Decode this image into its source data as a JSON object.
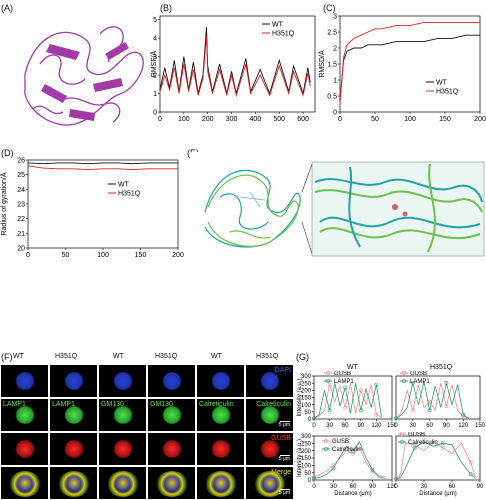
{
  "panel_labels": {
    "A": "(A)",
    "B": "(B)",
    "C": "(C)",
    "D": "(D)",
    "E": "(E)",
    "F": "(F)",
    "G": "(G)"
  },
  "legend": {
    "wt": "WT",
    "mut": "H351Q"
  },
  "colors": {
    "wt": "#111111",
    "mut": "#e32222",
    "gusb": "#f08f8f",
    "green": "#2e9d6a",
    "protein": "#a23aa8"
  },
  "chart_data": [
    {
      "id": "B",
      "type": "line",
      "ylabel": "RMSF/Å",
      "xlabel": "",
      "xlim": [
        0,
        650
      ],
      "ylim": [
        0,
        5.2
      ],
      "xticks": [
        0,
        100,
        200,
        300,
        400,
        500,
        600
      ],
      "yticks": [
        0,
        1,
        2,
        3,
        4,
        5
      ],
      "series": [
        {
          "name": "WT",
          "x": [
            0,
            20,
            40,
            60,
            80,
            100,
            120,
            140,
            160,
            180,
            195,
            200,
            220,
            250,
            280,
            300,
            320,
            360,
            380,
            420,
            460,
            500,
            540,
            560,
            600,
            620,
            630
          ],
          "y": [
            1.2,
            2.4,
            1.3,
            2.8,
            1.1,
            3.0,
            1.2,
            2.7,
            1.0,
            2.0,
            4.6,
            2.5,
            1.1,
            2.6,
            1.0,
            2.2,
            1.0,
            2.9,
            1.1,
            2.3,
            1.0,
            2.8,
            1.1,
            2.5,
            1.0,
            2.4,
            1.6
          ]
        },
        {
          "name": "H351Q",
          "x": [
            0,
            20,
            40,
            60,
            80,
            100,
            120,
            140,
            160,
            180,
            195,
            200,
            220,
            250,
            280,
            300,
            320,
            360,
            380,
            420,
            460,
            500,
            540,
            560,
            600,
            620,
            630
          ],
          "y": [
            1.1,
            2.0,
            1.2,
            2.4,
            1.0,
            2.6,
            1.1,
            2.3,
            0.9,
            1.8,
            4.1,
            2.2,
            1.0,
            2.3,
            0.9,
            2.0,
            0.9,
            2.6,
            1.0,
            2.0,
            0.9,
            2.5,
            1.0,
            2.2,
            0.9,
            2.1,
            1.4
          ]
        }
      ]
    },
    {
      "id": "C",
      "type": "line",
      "ylabel": "RMSD/Å",
      "xlabel": "",
      "xlim": [
        0,
        200
      ],
      "ylim": [
        0,
        3.0
      ],
      "xticks": [
        0,
        50,
        100,
        150,
        200
      ],
      "yticks": [
        0,
        0.5,
        1.0,
        1.5,
        2.0,
        2.5,
        3.0
      ],
      "series": [
        {
          "name": "WT",
          "x": [
            0,
            5,
            10,
            20,
            30,
            40,
            50,
            60,
            80,
            100,
            120,
            140,
            160,
            180,
            200
          ],
          "y": [
            0.3,
            1.6,
            1.9,
            2.0,
            2.0,
            2.1,
            2.1,
            2.1,
            2.2,
            2.2,
            2.2,
            2.3,
            2.3,
            2.4,
            2.4
          ]
        },
        {
          "name": "H351Q",
          "x": [
            0,
            5,
            10,
            20,
            30,
            40,
            50,
            60,
            80,
            100,
            120,
            140,
            160,
            180,
            200
          ],
          "y": [
            0.3,
            1.7,
            2.1,
            2.3,
            2.4,
            2.5,
            2.6,
            2.6,
            2.7,
            2.7,
            2.8,
            2.8,
            2.8,
            2.8,
            2.8
          ]
        }
      ]
    },
    {
      "id": "D",
      "type": "line",
      "ylabel": "Radius of gyration/Å",
      "xlabel": "",
      "xlim": [
        0,
        200
      ],
      "ylim": [
        20,
        26
      ],
      "xticks": [
        0,
        50,
        100,
        150,
        200
      ],
      "yticks": [
        20,
        21,
        22,
        23,
        24,
        25,
        26
      ],
      "series": [
        {
          "name": "WT",
          "x": [
            0,
            20,
            40,
            60,
            80,
            100,
            120,
            140,
            160,
            180,
            200
          ],
          "y": [
            25.8,
            25.75,
            25.8,
            25.8,
            25.75,
            25.8,
            25.8,
            25.75,
            25.8,
            25.8,
            25.8
          ]
        },
        {
          "name": "H351Q",
          "x": [
            0,
            20,
            40,
            60,
            80,
            100,
            120,
            140,
            160,
            180,
            200
          ],
          "y": [
            25.6,
            25.45,
            25.4,
            25.4,
            25.35,
            25.4,
            25.4,
            25.35,
            25.4,
            25.4,
            25.4
          ]
        }
      ]
    },
    {
      "id": "G1",
      "type": "line",
      "ylabel": "Intensity (a.u.)",
      "xlabel": "",
      "xlim": [
        0,
        150
      ],
      "ylim": [
        0,
        300
      ],
      "xticks": [
        0,
        30,
        60,
        90,
        120,
        150
      ],
      "yticks": [
        0,
        50,
        100,
        150,
        200,
        250,
        300
      ],
      "series": [
        {
          "name": "GUSB",
          "x": [
            0,
            10,
            20,
            30,
            40,
            50,
            60,
            70,
            80,
            90,
            100,
            110,
            120,
            130
          ],
          "y": [
            5,
            20,
            60,
            240,
            120,
            230,
            80,
            250,
            40,
            200,
            100,
            240,
            30,
            10
          ]
        },
        {
          "name": "LAMP1",
          "x": [
            0,
            10,
            20,
            30,
            40,
            50,
            60,
            70,
            80,
            90,
            100,
            110,
            120,
            130
          ],
          "y": [
            5,
            30,
            200,
            60,
            250,
            90,
            220,
            40,
            250,
            60,
            210,
            80,
            240,
            10
          ]
        }
      ]
    },
    {
      "id": "G2",
      "type": "line",
      "ylabel": "",
      "xlabel": "",
      "xlim": [
        0,
        150
      ],
      "ylim": [
        0,
        300
      ],
      "xticks": [
        0,
        30,
        60,
        90,
        120,
        150
      ],
      "yticks": [],
      "series": [
        {
          "name": "GUSB",
          "x": [
            0,
            10,
            20,
            30,
            40,
            50,
            60,
            70,
            80,
            90,
            100,
            110,
            120,
            130
          ],
          "y": [
            5,
            50,
            200,
            60,
            240,
            80,
            120,
            60,
            250,
            90,
            240,
            60,
            20,
            5
          ]
        },
        {
          "name": "LAMP1",
          "x": [
            0,
            10,
            20,
            30,
            40,
            50,
            60,
            70,
            80,
            90,
            100,
            110,
            120,
            130
          ],
          "y": [
            5,
            30,
            80,
            250,
            100,
            260,
            60,
            230,
            80,
            250,
            100,
            240,
            30,
            5
          ]
        }
      ]
    },
    {
      "id": "G3",
      "type": "line",
      "ylabel": "Intensity (a.u.)",
      "xlabel": "Distance (μm)",
      "xlim": [
        0,
        120
      ],
      "ylim": [
        0,
        300
      ],
      "xticks": [
        0,
        30,
        60,
        90,
        120
      ],
      "yticks": [
        0,
        50,
        100,
        150,
        200,
        250,
        300
      ],
      "series": [
        {
          "name": "GUSB",
          "x": [
            0,
            10,
            20,
            30,
            40,
            50,
            60,
            70,
            80,
            90,
            100,
            110
          ],
          "y": [
            20,
            40,
            60,
            100,
            150,
            200,
            180,
            220,
            120,
            60,
            30,
            20
          ]
        },
        {
          "name": "Calreticulin",
          "x": [
            0,
            10,
            20,
            30,
            40,
            50,
            60,
            70,
            80,
            90,
            100,
            110
          ],
          "y": [
            10,
            20,
            40,
            80,
            160,
            230,
            200,
            260,
            150,
            70,
            20,
            10
          ]
        }
      ]
    },
    {
      "id": "G4",
      "type": "line",
      "ylabel": "",
      "xlabel": "Distance (μm)",
      "xlim": [
        0,
        90
      ],
      "ylim": [
        0,
        300
      ],
      "xticks": [
        0,
        30,
        60,
        90
      ],
      "yticks": [],
      "series": [
        {
          "name": "GUSB",
          "x": [
            0,
            5,
            10,
            20,
            30,
            40,
            50,
            60,
            70,
            80,
            85
          ],
          "y": [
            10,
            40,
            250,
            240,
            200,
            260,
            220,
            180,
            250,
            120,
            20
          ]
        },
        {
          "name": "Calreticulin",
          "x": [
            0,
            5,
            10,
            20,
            30,
            40,
            50,
            60,
            70,
            80,
            85
          ],
          "y": [
            5,
            20,
            80,
            220,
            260,
            230,
            250,
            240,
            120,
            40,
            10
          ]
        }
      ]
    }
  ],
  "panelF": {
    "cols": [
      "WT",
      "H351Q",
      "WT",
      "H351Q",
      "WT",
      "H351Q"
    ],
    "row_tags": [
      [
        "",
        "",
        "",
        "",
        "",
        "DAPI"
      ],
      [
        "LAMP1",
        "LAMP1",
        "GM130",
        "GM130",
        "Calreticulin",
        "Calreticulin"
      ],
      [
        "",
        "",
        "",
        "",
        "",
        "GUSB"
      ],
      [
        "",
        "",
        "",
        "",
        "",
        "Merge"
      ]
    ],
    "scalebar": "5 μm"
  },
  "panelG": {
    "col_titles": [
      "WT",
      "H351Q"
    ]
  }
}
